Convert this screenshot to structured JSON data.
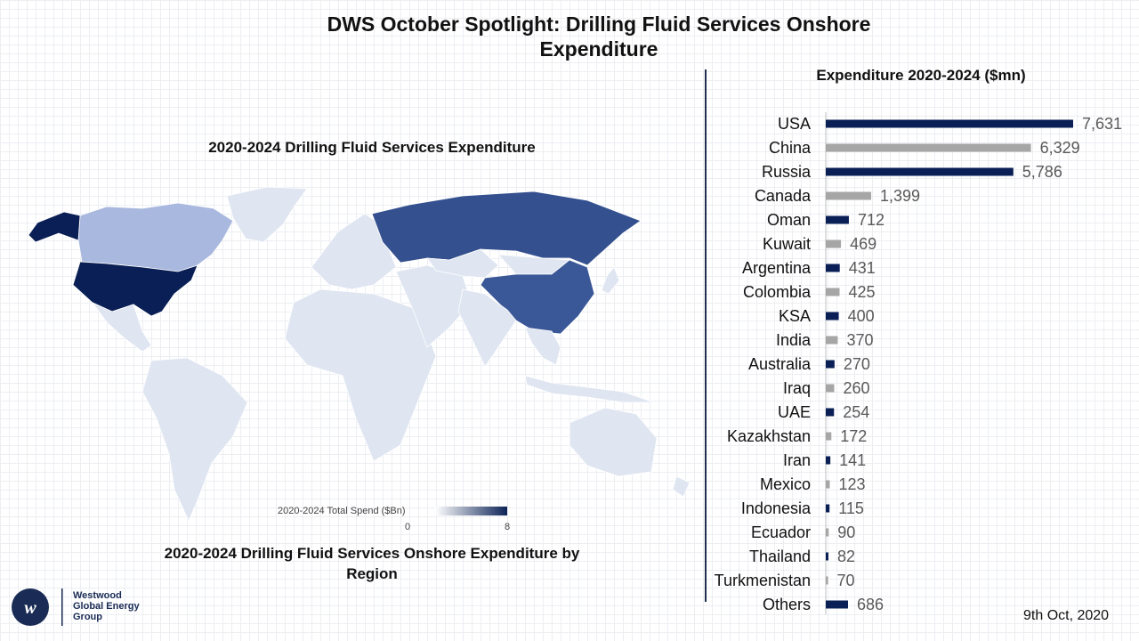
{
  "header": {
    "title_line1": "DWS October Spotlight: Drilling Fluid Services Onshore",
    "title_line2": "Expenditure"
  },
  "map": {
    "title": "2020-2024 Drilling Fluid Services Expenditure",
    "subtitle_line1": "2020-2024 Drilling Fluid Services Onshore Expenditure by",
    "subtitle_line2": "Region",
    "legend_label": "2020-2024 Total Spend ($Bn)",
    "legend_min": "0",
    "legend_max": "8",
    "colors": {
      "low": "#ffffff",
      "high": "#0d2457",
      "land": "#dfe5f1",
      "usa": "#0a1f55",
      "russia": "#34508f",
      "china": "#3a5797",
      "canada": "#a9b8de"
    }
  },
  "chart_data": {
    "type": "bar",
    "orientation": "horizontal",
    "title": "Expenditure 2020-2024 ($mn)",
    "categories": [
      "USA",
      "China",
      "Russia",
      "Canada",
      "Oman",
      "Kuwait",
      "Argentina",
      "Colombia",
      "KSA",
      "India",
      "Australia",
      "Iraq",
      "UAE",
      "Kazakhstan",
      "Iran",
      "Mexico",
      "Indonesia",
      "Ecuador",
      "Thailand",
      "Turkmenistan",
      "Others"
    ],
    "values": [
      7631,
      6329,
      5786,
      1399,
      712,
      469,
      431,
      425,
      400,
      370,
      270,
      260,
      254,
      172,
      141,
      123,
      115,
      90,
      82,
      70,
      686
    ],
    "value_labels": [
      "7,631",
      "6,329",
      "5,786",
      "1,399",
      "712",
      "469",
      "431",
      "425",
      "400",
      "370",
      "270",
      "260",
      "254",
      "172",
      "141",
      "123",
      "115",
      "90",
      "82",
      "70",
      "686"
    ],
    "colors": [
      "#0a1f55",
      "#a6a6a6"
    ],
    "xlim": [
      0,
      7631
    ],
    "grid": false
  },
  "footer": {
    "date": "9th Oct, 2020",
    "company_line1": "Westwood",
    "company_line2": "Global Energy",
    "company_line3": "Group"
  }
}
